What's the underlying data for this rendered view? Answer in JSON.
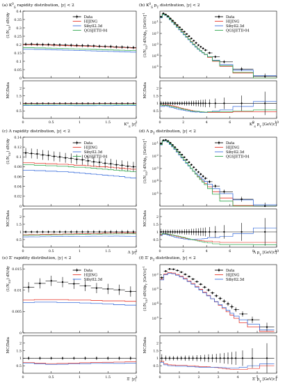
{
  "colors": {
    "data": "#000000",
    "hijing": "#e8372b",
    "sibyll": "#3b6fdc",
    "qgsjet": "#2fa84f",
    "frame": "#000000"
  },
  "chart_data": [
    {
      "type": "line",
      "title": "(a) K$^0_S$ rapidity distribution, |y| < 2",
      "ylabel": "(1/N$_{\\rm SD}$) dN/dy",
      "xlabel": "K$^0_S$ |y|",
      "ratio_ylabel": "MC/Data",
      "xlim": [
        0,
        2
      ],
      "ylim": [
        0,
        0.4
      ],
      "log_y": false,
      "xticks": [
        "0",
        "0.5",
        "1",
        "1.5",
        "2"
      ],
      "yticks": [
        "0",
        "0.05",
        "0.1",
        "0.15",
        "0.2",
        "0.25",
        "0.3",
        "0.35",
        "0.4"
      ],
      "ratio_ylim": [
        0,
        2.5
      ],
      "ratio_yticks": [
        "0.5",
        "1",
        "1.5",
        "2"
      ],
      "legend": [
        "Data",
        "HIJING",
        "Sibyll2.3d",
        "QGSJETII-04"
      ],
      "x": [
        0.05,
        0.15,
        0.25,
        0.35,
        0.45,
        0.55,
        0.65,
        0.75,
        0.85,
        0.95,
        1.05,
        1.15,
        1.25,
        1.35,
        1.45,
        1.55,
        1.65,
        1.75,
        1.85,
        1.95
      ],
      "series": [
        {
          "name": "Data",
          "values": [
            0.202,
            0.203,
            0.201,
            0.2,
            0.2,
            0.199,
            0.198,
            0.197,
            0.196,
            0.195,
            0.194,
            0.193,
            0.192,
            0.19,
            0.189,
            0.188,
            0.186,
            0.185,
            0.183,
            0.182
          ],
          "yerr": [
            0.01,
            0.01,
            0.01,
            0.01,
            0.01,
            0.01,
            0.01,
            0.01,
            0.01,
            0.01,
            0.01,
            0.01,
            0.01,
            0.01,
            0.01,
            0.01,
            0.01,
            0.01,
            0.01,
            0.01
          ]
        },
        {
          "name": "HIJING",
          "values": [
            0.199,
            0.199,
            0.198,
            0.198,
            0.197,
            0.196,
            0.195,
            0.194,
            0.193,
            0.192,
            0.191,
            0.19,
            0.189,
            0.188,
            0.187,
            0.186,
            0.184,
            0.183,
            0.182,
            0.18
          ]
        },
        {
          "name": "Sibyll2.3d",
          "values": [
            0.172,
            0.172,
            0.171,
            0.171,
            0.17,
            0.169,
            0.168,
            0.167,
            0.166,
            0.165,
            0.164,
            0.163,
            0.162,
            0.161,
            0.16,
            0.159,
            0.158,
            0.157,
            0.156,
            0.155
          ]
        },
        {
          "name": "QGSJETII-04",
          "values": [
            0.181,
            0.181,
            0.18,
            0.18,
            0.179,
            0.178,
            0.177,
            0.176,
            0.175,
            0.174,
            0.173,
            0.172,
            0.171,
            0.17,
            0.169,
            0.168,
            0.167,
            0.166,
            0.165,
            0.164
          ]
        }
      ]
    },
    {
      "type": "line",
      "title": "(b) K$^0_S$ p$_T$ distribution, |y| < 2",
      "ylabel": "(1/N$_{\\rm SD}$) dN/dp$_T$ [GeV/c]$^{-1}$",
      "xlabel": "K$^0_S$ p$_T$ [GeV/c]",
      "ratio_ylabel": "MC/Data",
      "xlim": [
        0,
        10
      ],
      "ylim": [
        -6,
        0
      ],
      "log_y": true,
      "xticks": [
        "0",
        "2",
        "4",
        "6",
        "8",
        "10"
      ],
      "yticks": [
        "10$^{-5}$",
        "10$^{-4}$",
        "10$^{-3}$",
        "10$^{-2}$",
        "10$^{-1}$"
      ],
      "ratio_ylim": [
        0,
        2.5
      ],
      "ratio_yticks": [
        "0.5",
        "1",
        "1.5",
        "2"
      ],
      "legend": [
        "Data",
        "HIJING",
        "Sibyll2.3d",
        "QGSJETII-04"
      ],
      "x": [
        0.1,
        0.3,
        0.5,
        0.7,
        0.9,
        1.1,
        1.3,
        1.5,
        1.7,
        1.9,
        2.1,
        2.3,
        2.5,
        2.7,
        2.9,
        3.1,
        3.3,
        3.5,
        3.7,
        3.9,
        4.25,
        4.75,
        5.5,
        7.0,
        9.0
      ],
      "series": [
        {
          "name": "Data",
          "values": [
            -0.5,
            -0.2,
            -0.3,
            -0.45,
            -0.65,
            -0.85,
            -1.05,
            -1.25,
            -1.45,
            -1.65,
            -1.85,
            -2.05,
            -2.25,
            -2.45,
            -2.65,
            -2.85,
            -3.05,
            -3.2,
            -3.35,
            -3.5,
            -3.75,
            -4.1,
            -4.55,
            -5.2,
            -5.85
          ],
          "yerr": [
            0.06,
            0.05,
            0.05,
            0.05,
            0.05,
            0.05,
            0.05,
            0.05,
            0.05,
            0.05,
            0.06,
            0.06,
            0.06,
            0.07,
            0.07,
            0.08,
            0.08,
            0.09,
            0.09,
            0.1,
            0.1,
            0.12,
            0.14,
            0.18,
            0.25
          ]
        },
        {
          "name": "HIJING",
          "values": [
            -0.55,
            -0.25,
            -0.35,
            -0.5,
            -0.72,
            -0.93,
            -1.15,
            -1.37,
            -1.6,
            -1.82,
            -2.05,
            -2.27,
            -2.5,
            -2.72,
            -2.95,
            -3.17,
            -3.38,
            -3.55,
            -3.72,
            -3.9,
            -4.15,
            -4.5,
            -4.95,
            -5.55,
            -6.2
          ]
        },
        {
          "name": "Sibyll2.3d",
          "values": [
            -0.6,
            -0.3,
            -0.38,
            -0.55,
            -0.78,
            -1.0,
            -1.22,
            -1.45,
            -1.68,
            -1.9,
            -2.12,
            -2.35,
            -2.57,
            -2.8,
            -3.02,
            -3.23,
            -3.42,
            -3.6,
            -3.75,
            -3.9,
            -4.1,
            -4.4,
            -4.8,
            -5.3,
            -5.8
          ]
        },
        {
          "name": "QGSJETII-04",
          "values": [
            -0.55,
            -0.27,
            -0.36,
            -0.52,
            -0.74,
            -0.96,
            -1.18,
            -1.4,
            -1.62,
            -1.85,
            -2.07,
            -2.3,
            -2.52,
            -2.75,
            -2.97,
            -3.18,
            -3.38,
            -3.55,
            -3.72,
            -3.88,
            -4.1,
            -4.45,
            -4.9,
            -5.5,
            -6.1
          ]
        }
      ]
    },
    {
      "type": "line",
      "title": "(c) Λ rapidity distribution, |y| < 2",
      "ylabel": "(1/N$_{\\rm SD}$) dN/dy",
      "xlabel": "Λ |y|",
      "ratio_ylabel": "MC/Data",
      "xlim": [
        0,
        2
      ],
      "ylim": [
        0,
        0.14
      ],
      "log_y": false,
      "xticks": [
        "0",
        "0.5",
        "1",
        "1.5",
        "2"
      ],
      "yticks": [
        "0",
        "0.02",
        "0.04",
        "0.06",
        "0.08",
        "0.1",
        "0.12",
        "0.14"
      ],
      "ratio_ylim": [
        0,
        2.5
      ],
      "ratio_yticks": [
        "0.5",
        "1",
        "1.5",
        "2"
      ],
      "legend": [
        "Data",
        "HIJING",
        "Sibyll2.3d",
        "QGSJETII-04"
      ],
      "x": [
        0.05,
        0.15,
        0.25,
        0.35,
        0.45,
        0.55,
        0.65,
        0.75,
        0.85,
        0.95,
        1.05,
        1.15,
        1.25,
        1.35,
        1.45,
        1.55,
        1.65,
        1.75,
        1.85,
        1.95
      ],
      "series": [
        {
          "name": "Data",
          "values": [
            0.108,
            0.107,
            0.106,
            0.104,
            0.103,
            0.101,
            0.1,
            0.098,
            0.097,
            0.095,
            0.094,
            0.092,
            0.09,
            0.089,
            0.087,
            0.086,
            0.084,
            0.083,
            0.081,
            0.08
          ],
          "yerr": [
            0.01,
            0.01,
            0.01,
            0.01,
            0.01,
            0.01,
            0.01,
            0.01,
            0.01,
            0.01,
            0.01,
            0.01,
            0.01,
            0.01,
            0.01,
            0.01,
            0.01,
            0.01,
            0.01,
            0.01
          ]
        },
        {
          "name": "HIJING",
          "values": [
            0.088,
            0.088,
            0.087,
            0.087,
            0.086,
            0.086,
            0.085,
            0.085,
            0.084,
            0.083,
            0.083,
            0.082,
            0.081,
            0.08,
            0.08,
            0.079,
            0.078,
            0.077,
            0.076,
            0.075
          ]
        },
        {
          "name": "Sibyll2.3d",
          "values": [
            0.073,
            0.073,
            0.072,
            0.072,
            0.071,
            0.071,
            0.07,
            0.07,
            0.069,
            0.068,
            0.067,
            0.066,
            0.065,
            0.064,
            0.063,
            0.062,
            0.061,
            0.06,
            0.058,
            0.057
          ]
        },
        {
          "name": "QGSJETII-04",
          "values": [
            0.084,
            0.084,
            0.083,
            0.083,
            0.082,
            0.082,
            0.081,
            0.081,
            0.08,
            0.079,
            0.079,
            0.078,
            0.077,
            0.076,
            0.075,
            0.074,
            0.073,
            0.072,
            0.071,
            0.07
          ]
        }
      ]
    },
    {
      "type": "line",
      "title": "(d) Λ p$_T$ distribution, |y| < 2",
      "ylabel": "(1/N$_{\\rm SD}$) dN/dp$_T$ [GeV/c]$^{-1}$",
      "xlabel": "Λ p$_T$ [GeV/c]",
      "ratio_ylabel": "MC/Data",
      "xlim": [
        0,
        10
      ],
      "ylim": [
        -6,
        -0.5
      ],
      "log_y": true,
      "xticks": [
        "0",
        "2",
        "4",
        "6",
        "8",
        "10"
      ],
      "yticks": [
        "10$^{-5}$",
        "10$^{-4}$",
        "10$^{-3}$",
        "10$^{-2}$",
        "10$^{-1}$"
      ],
      "ratio_ylim": [
        0,
        2.5
      ],
      "ratio_yticks": [
        "0.5",
        "1",
        "1.5",
        "2"
      ],
      "legend": [
        "Data",
        "HIJING",
        "Sibyll2.3d",
        "QGSJETII-04"
      ],
      "x": [
        0.1,
        0.3,
        0.5,
        0.7,
        0.9,
        1.1,
        1.3,
        1.5,
        1.7,
        1.9,
        2.1,
        2.3,
        2.5,
        2.7,
        2.9,
        3.1,
        3.3,
        3.5,
        3.7,
        3.9,
        4.25,
        4.75,
        5.5,
        7.0,
        9.0
      ],
      "series": [
        {
          "name": "Data",
          "values": [
            -1.0,
            -0.75,
            -0.72,
            -0.8,
            -0.95,
            -1.12,
            -1.3,
            -1.5,
            -1.7,
            -1.9,
            -2.1,
            -2.3,
            -2.5,
            -2.7,
            -2.9,
            -3.1,
            -3.28,
            -3.45,
            -3.62,
            -3.78,
            -4.05,
            -4.4,
            -4.85,
            -5.45,
            -6.0
          ],
          "yerr": [
            0.08,
            0.06,
            0.06,
            0.06,
            0.06,
            0.06,
            0.06,
            0.06,
            0.06,
            0.06,
            0.07,
            0.07,
            0.07,
            0.08,
            0.08,
            0.09,
            0.09,
            0.1,
            0.1,
            0.11,
            0.12,
            0.14,
            0.16,
            0.2,
            0.28
          ]
        },
        {
          "name": "HIJING",
          "values": [
            -1.1,
            -0.8,
            -0.78,
            -0.88,
            -1.05,
            -1.23,
            -1.43,
            -1.65,
            -1.87,
            -2.1,
            -2.32,
            -2.55,
            -2.77,
            -3.0,
            -3.22,
            -3.43,
            -3.63,
            -3.82,
            -4.0,
            -4.18,
            -4.45,
            -4.85,
            -5.35,
            -5.95,
            -6.5
          ]
        },
        {
          "name": "Sibyll2.3d",
          "values": [
            -1.12,
            -0.82,
            -0.8,
            -0.9,
            -1.08,
            -1.27,
            -1.48,
            -1.7,
            -1.93,
            -2.15,
            -2.37,
            -2.58,
            -2.8,
            -3.0,
            -3.2,
            -3.38,
            -3.55,
            -3.72,
            -3.88,
            -4.03,
            -4.25,
            -4.6,
            -5.0,
            -5.5,
            -5.9
          ]
        },
        {
          "name": "QGSJETII-04",
          "values": [
            -1.08,
            -0.8,
            -0.77,
            -0.87,
            -1.03,
            -1.22,
            -1.42,
            -1.63,
            -1.85,
            -2.08,
            -2.3,
            -2.53,
            -2.76,
            -2.99,
            -3.22,
            -3.45,
            -3.67,
            -3.88,
            -4.08,
            -4.28,
            -4.6,
            -5.05,
            -5.6,
            -6.2,
            -6.8
          ]
        }
      ]
    },
    {
      "type": "line",
      "title": "(e) Ξ$^-$ rapidity distribution, |y| < 2",
      "ylabel": "(1/N$_{\\rm SD}$) dN/dy",
      "xlabel": "Ξ$^-$ |y|",
      "ratio_ylabel": "MC/Data",
      "xlim": [
        0,
        2
      ],
      "ylim": [
        0,
        0.016
      ],
      "log_y": false,
      "xticks": [
        "0",
        "0.5",
        "1",
        "1.5",
        "2"
      ],
      "yticks": [
        "0",
        "0.005",
        "0.01",
        "0.015"
      ],
      "ratio_ylim": [
        0,
        2.5
      ],
      "ratio_yticks": [
        "0.5",
        "1",
        "1.5",
        "2"
      ],
      "legend": [
        "Data",
        "HIJING",
        "Sibyll2.3d"
      ],
      "x": [
        0.1,
        0.3,
        0.5,
        0.7,
        0.9,
        1.1,
        1.3,
        1.5,
        1.7,
        1.9
      ],
      "series": [
        {
          "name": "Data",
          "values": [
            0.0107,
            0.0116,
            0.0122,
            0.0119,
            0.0115,
            0.011,
            0.0105,
            0.0103,
            0.0101,
            0.0097
          ],
          "yerr": [
            0.0012,
            0.0012,
            0.0012,
            0.0012,
            0.0012,
            0.0012,
            0.0012,
            0.0012,
            0.0012,
            0.0012
          ]
        },
        {
          "name": "HIJING",
          "values": [
            0.0077,
            0.0078,
            0.0078,
            0.0078,
            0.0077,
            0.0077,
            0.0076,
            0.0075,
            0.0075,
            0.0074
          ]
        },
        {
          "name": "Sibyll2.3d",
          "values": [
            0.0071,
            0.0072,
            0.0072,
            0.0071,
            0.0071,
            0.007,
            0.0069,
            0.0068,
            0.0066,
            0.0065
          ]
        }
      ]
    },
    {
      "type": "line",
      "title": "(f) Ξ$^-$ p$_T$ distribution, |y| < 2",
      "ylabel": "(1/N$_{\\rm SD}$) dN/dp$_T$ [GeV/c]$^{-1}$",
      "xlabel": "Ξ$^-$ p$_T$ [GeV/c]",
      "ratio_ylabel": "MC/Data",
      "xlim": [
        0,
        6
      ],
      "ylim": [
        -6,
        -1.3
      ],
      "log_y": true,
      "xticks": [
        "0",
        "1",
        "2",
        "3",
        "4",
        "5",
        "6"
      ],
      "yticks": [
        "10$^{-5}$",
        "10$^{-4}$",
        "10$^{-3}$",
        "10$^{-2}$"
      ],
      "ratio_ylim": [
        0,
        2.5
      ],
      "ratio_yticks": [
        "0.5",
        "1",
        "1.5",
        "2"
      ],
      "legend": [
        "Data",
        "HIJING",
        "Sibyll2.3d"
      ],
      "x": [
        0.1,
        0.3,
        0.5,
        0.7,
        0.9,
        1.1,
        1.3,
        1.5,
        1.7,
        1.9,
        2.1,
        2.3,
        2.5,
        2.7,
        2.9,
        3.1,
        3.3,
        3.5,
        3.7,
        3.9,
        4.25,
        4.75,
        5.5
      ],
      "series": [
        {
          "name": "Data",
          "values": [
            -2.2,
            -1.75,
            -1.6,
            -1.62,
            -1.7,
            -1.82,
            -1.97,
            -2.12,
            -2.3,
            -2.47,
            -2.65,
            -2.85,
            -3.05,
            -3.25,
            -3.45,
            -3.63,
            -3.82,
            -4.0,
            -4.2,
            -4.4,
            -4.7,
            -5.1,
            -5.6
          ],
          "yerr": [
            0.1,
            0.07,
            0.06,
            0.06,
            0.06,
            0.06,
            0.07,
            0.07,
            0.07,
            0.08,
            0.08,
            0.09,
            0.1,
            0.1,
            0.11,
            0.12,
            0.13,
            0.14,
            0.15,
            0.16,
            0.18,
            0.22,
            0.3
          ]
        },
        {
          "name": "HIJING",
          "values": [
            -2.3,
            -1.95,
            -1.85,
            -1.88,
            -1.98,
            -2.1,
            -2.25,
            -2.42,
            -2.6,
            -2.8,
            -3.0,
            -3.2,
            -3.42,
            -3.65,
            -3.87,
            -4.1,
            -4.32,
            -4.55,
            -4.78,
            -5.0,
            -5.3,
            -5.6,
            -5.9
          ]
        },
        {
          "name": "Sibyll2.3d",
          "values": [
            -2.35,
            -2.0,
            -1.9,
            -1.93,
            -2.03,
            -2.15,
            -2.3,
            -2.47,
            -2.65,
            -2.85,
            -3.05,
            -3.25,
            -3.45,
            -3.65,
            -3.85,
            -4.05,
            -4.25,
            -4.45,
            -4.65,
            -4.85,
            -5.1,
            -5.4,
            -5.8
          ]
        }
      ]
    }
  ]
}
